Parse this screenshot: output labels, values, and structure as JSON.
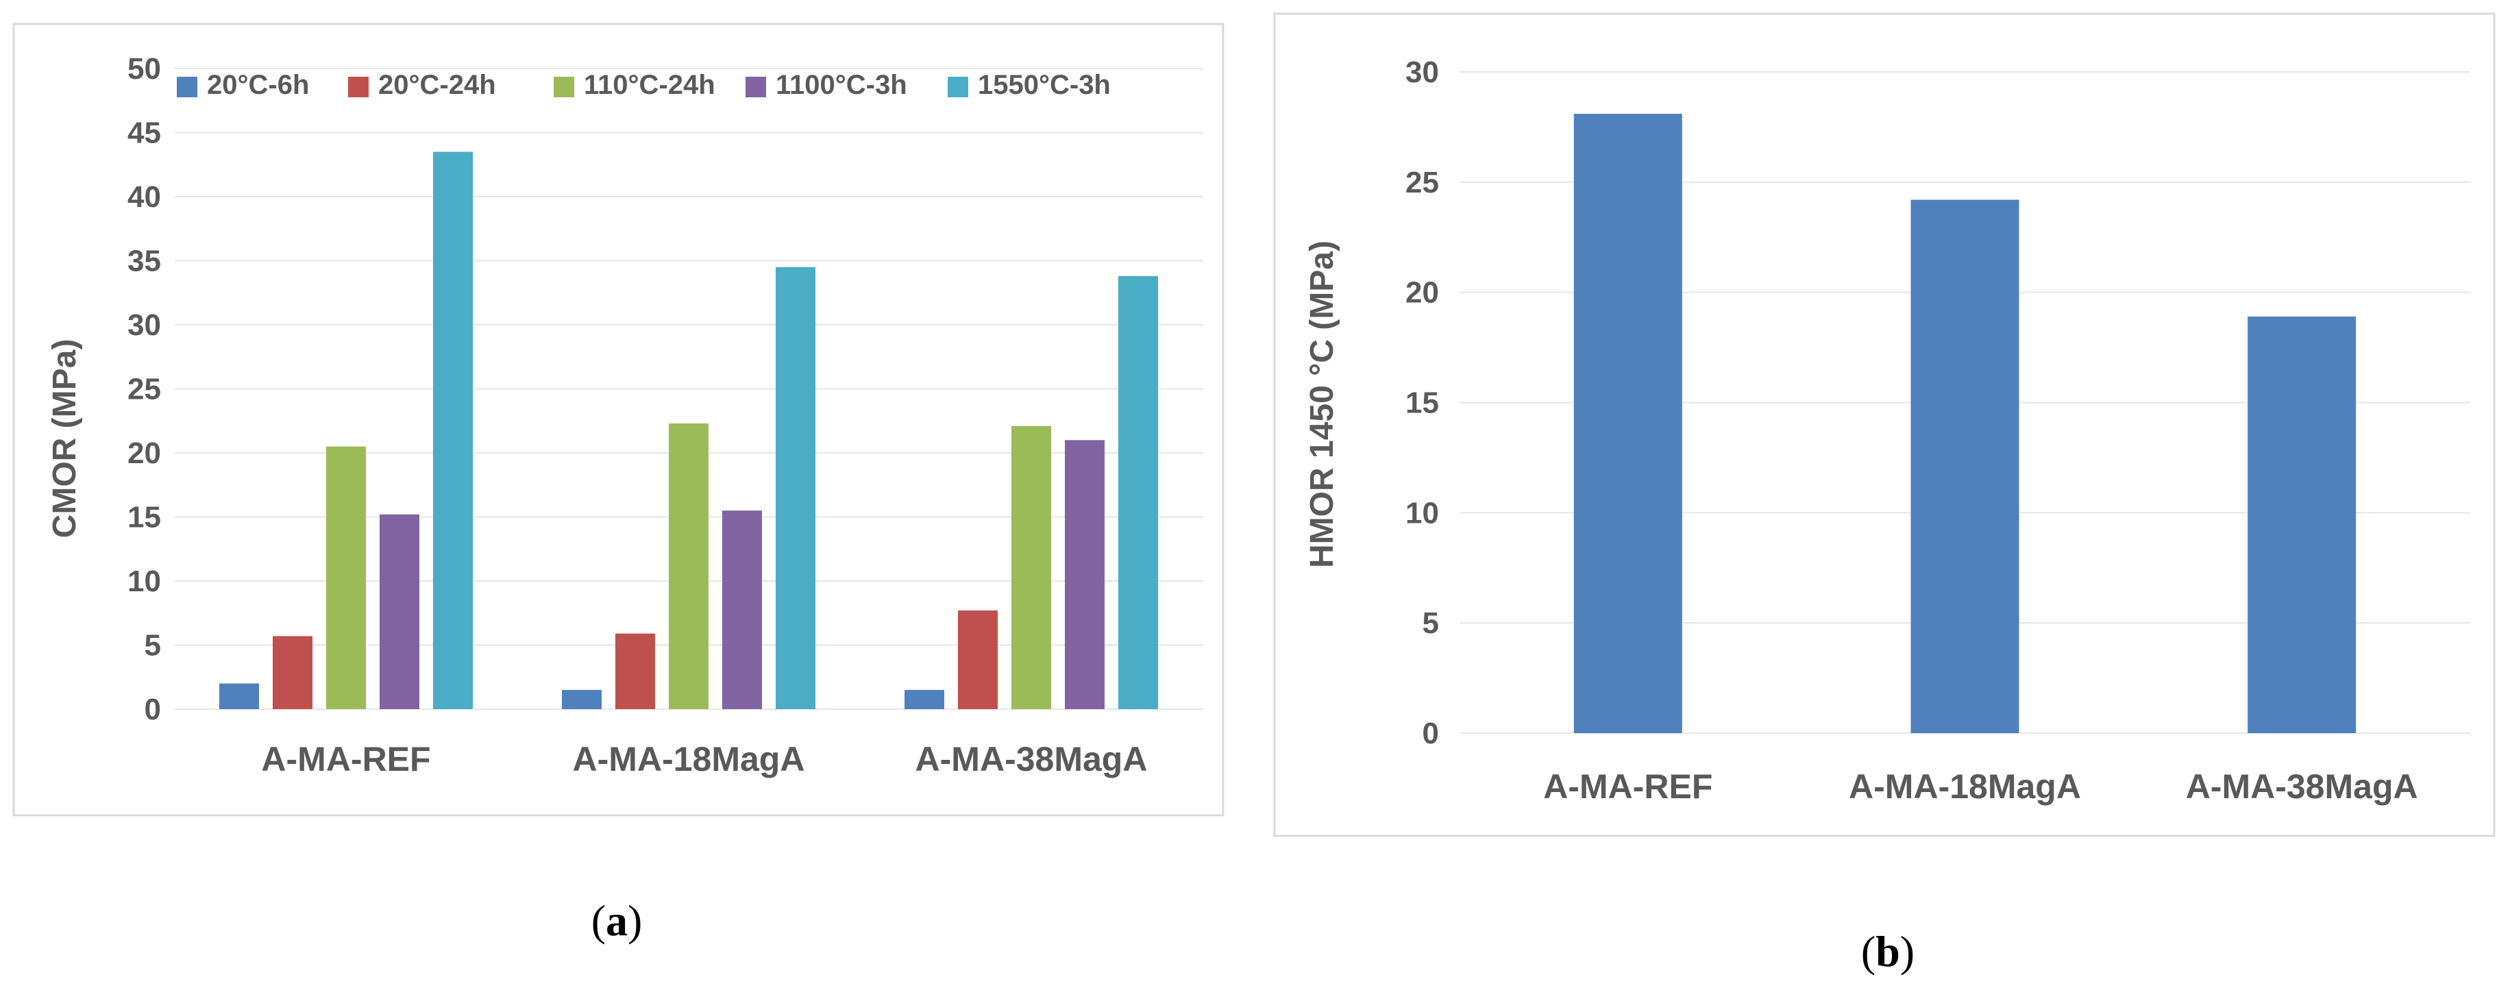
{
  "chart_data": [
    {
      "type": "bar",
      "panel": "a",
      "caption": {
        "open": "(",
        "letter": "a",
        "close": ")"
      },
      "categories": [
        "A-MA-REF",
        "A-MA-18MagA",
        "A-MA-38MagA"
      ],
      "series": [
        {
          "name": "20°C-6h",
          "color": "#4f81bd",
          "values": [
            2.0,
            1.5,
            1.5
          ]
        },
        {
          "name": "20°C-24h",
          "color": "#c0504d",
          "values": [
            5.7,
            5.9,
            7.7
          ]
        },
        {
          "name": "110°C-24h",
          "color": "#9bbb59",
          "values": [
            20.5,
            22.3,
            22.1
          ]
        },
        {
          "name": "1100°C-3h",
          "color": "#8064a2",
          "values": [
            15.2,
            15.5,
            21.0
          ]
        },
        {
          "name": "1550°C-3h",
          "color": "#4bacc6",
          "values": [
            43.5,
            34.5,
            33.8
          ]
        }
      ],
      "title": "",
      "xlabel": "",
      "ylabel": "CMOR (MPa)",
      "ylim": [
        0,
        50
      ],
      "yticks": [
        0,
        5,
        10,
        15,
        20,
        25,
        30,
        35,
        40,
        45,
        50
      ],
      "legend": "top",
      "grid": true
    },
    {
      "type": "bar",
      "panel": "b",
      "caption": {
        "open": "(",
        "letter": "b",
        "close": ")"
      },
      "categories": [
        "A-MA-REF",
        "A-MA-18MagA",
        "A-MA-38MagA"
      ],
      "series": [
        {
          "name": "HMOR",
          "color": "#4f81bd",
          "values": [
            28.1,
            24.2,
            18.9
          ]
        }
      ],
      "title": "",
      "xlabel": "",
      "ylabel": "HMOR 1450 °C  (MPa)",
      "ylim": [
        0,
        30
      ],
      "yticks": [
        0,
        5,
        10,
        15,
        20,
        25,
        30
      ],
      "legend": "none",
      "grid": true
    }
  ]
}
